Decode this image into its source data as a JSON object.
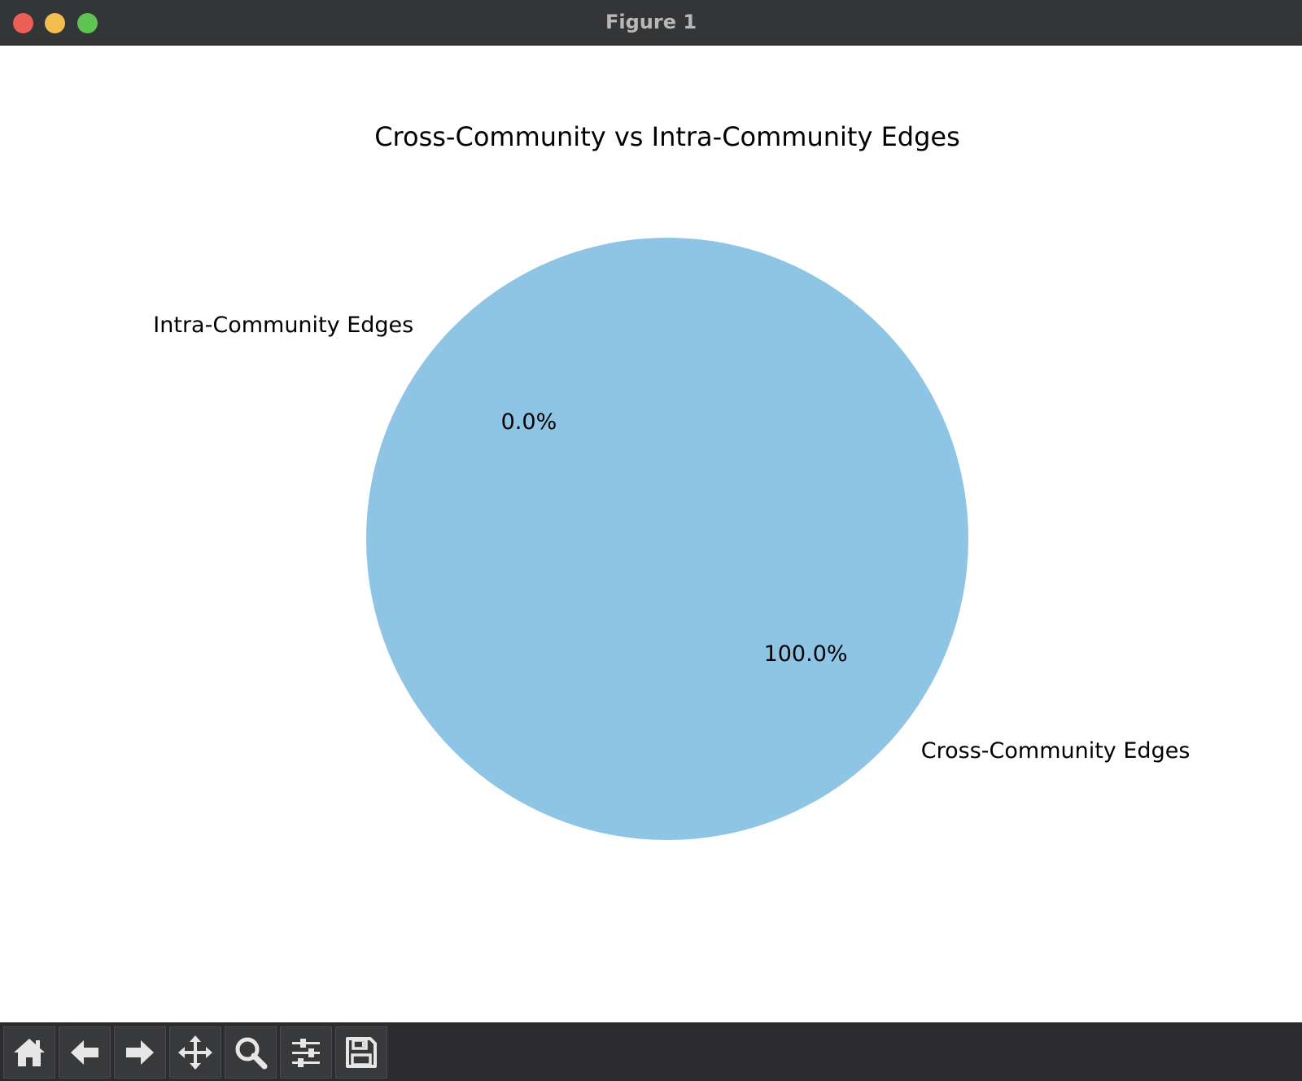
{
  "window": {
    "title": "Figure 1",
    "controls": [
      {
        "name": "close-button",
        "color": "#ec5f57"
      },
      {
        "name": "minimize-button",
        "color": "#f4bd4f"
      },
      {
        "name": "maximize-button",
        "color": "#5fc454"
      }
    ]
  },
  "toolbar": {
    "buttons": [
      {
        "name": "home-button",
        "icon": "home-icon"
      },
      {
        "name": "back-button",
        "icon": "arrow-left-icon"
      },
      {
        "name": "forward-button",
        "icon": "arrow-right-icon"
      },
      {
        "name": "pan-button",
        "icon": "move-icon"
      },
      {
        "name": "zoom-button",
        "icon": "magnifier-icon"
      },
      {
        "name": "configure-subplots-button",
        "icon": "sliders-icon"
      },
      {
        "name": "save-button",
        "icon": "floppy-disk-icon"
      }
    ],
    "icon_color": "#e6e6e6"
  },
  "chart_data": {
    "type": "pie",
    "title": "Cross-Community vs Intra-Community Edges",
    "labels": [
      "Intra-Community Edges",
      "Cross-Community Edges"
    ],
    "values": [
      0,
      100
    ],
    "autopct_labels": [
      "0.0%",
      "100.0%"
    ],
    "colors": [
      "#f4a582",
      "#8ec4e4"
    ],
    "start_angle_deg": 140,
    "counterclockwise": true
  }
}
